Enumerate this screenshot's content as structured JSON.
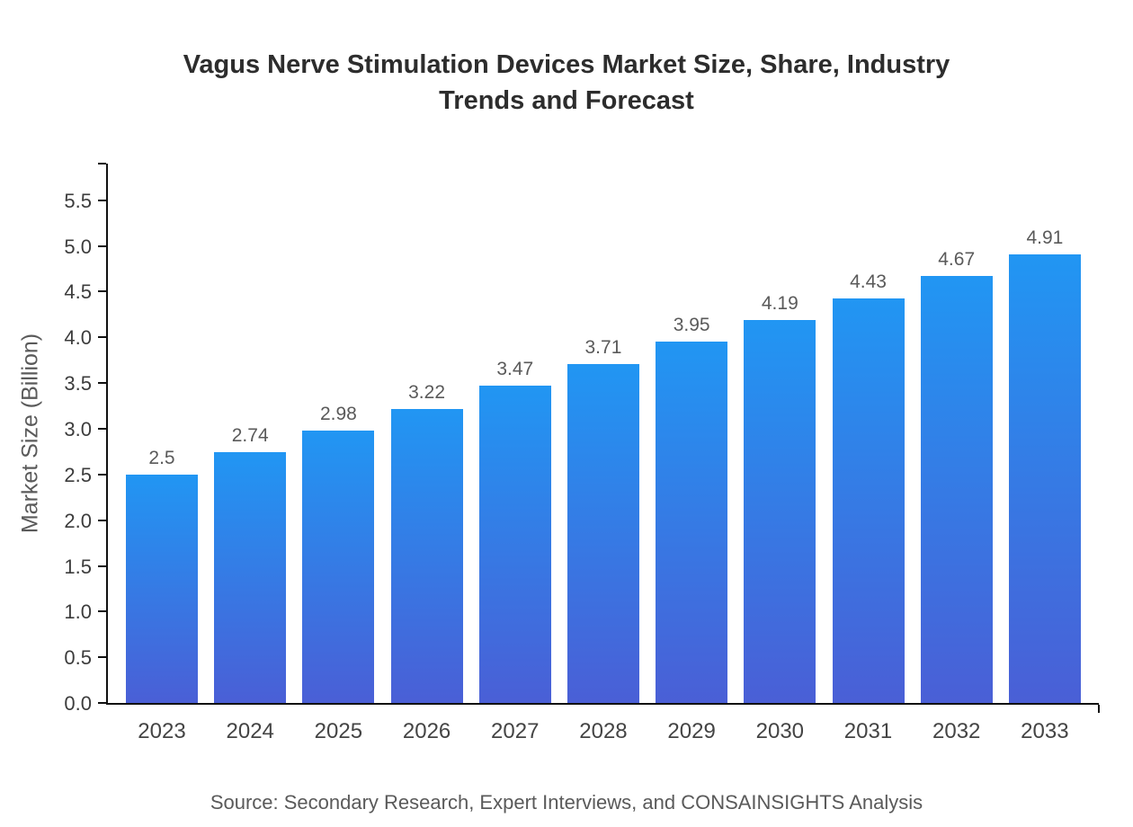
{
  "chart_data": {
    "type": "bar",
    "title": "Vagus Nerve Stimulation Devices Market Size, Share, Industry Trends and Forecast",
    "categories": [
      "2023",
      "2024",
      "2025",
      "2026",
      "2027",
      "2028",
      "2029",
      "2030",
      "2031",
      "2032",
      "2033"
    ],
    "values": [
      2.5,
      2.74,
      2.98,
      3.22,
      3.47,
      3.71,
      3.95,
      4.19,
      4.43,
      4.67,
      4.91
    ],
    "value_labels": [
      "2.5",
      "2.74",
      "2.98",
      "3.22",
      "3.47",
      "3.71",
      "3.95",
      "4.19",
      "4.43",
      "4.67",
      "4.91"
    ],
    "xlabel": "",
    "ylabel": "Market Size (Billion)",
    "ylim": [
      0,
      5.9
    ],
    "yticks": [
      "0.0",
      "0.5",
      "1.0",
      "1.5",
      "2.0",
      "2.5",
      "3.0",
      "3.5",
      "4.0",
      "4.5",
      "5.0",
      "5.5"
    ],
    "grid": false,
    "legend": false,
    "bar_gradient_top": "#2196f3",
    "bar_gradient_bottom": "#4a5fd6"
  },
  "footer": {
    "source": "Source: Secondary Research, Expert Interviews, and CONSAINSIGHTS Analysis"
  }
}
